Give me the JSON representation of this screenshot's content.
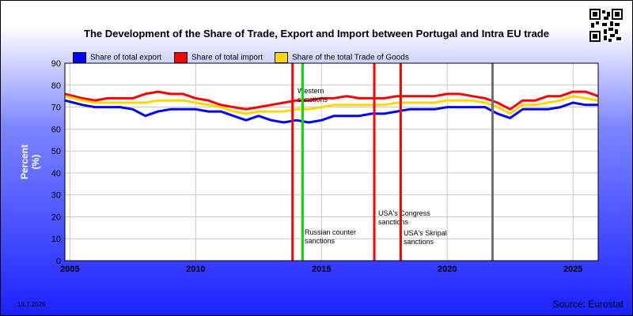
{
  "title": "The Development of the Share of Trade, Export and Import between Portugal and Intra EU trade",
  "date": "18.7.2026",
  "source": "Source: Eurostat",
  "colors": {
    "export": "#0000ff",
    "import": "#ff0000",
    "trade": "#ffd700",
    "plot_bg": "#ffffff"
  },
  "chart_data": {
    "type": "line",
    "title": "The Development of the Share of Trade, Export and Import between Portugal and Intra EU trade",
    "ylabel": "Percent (%)",
    "xlabel": "",
    "ylim": [
      0,
      90
    ],
    "xlim": [
      2004.8,
      2026.0
    ],
    "yticks": [
      "0",
      "10",
      "20",
      "30",
      "40",
      "50",
      "60",
      "70",
      "80",
      "90"
    ],
    "xticks": [
      "2005",
      "2010",
      "2015",
      "2020",
      "2025"
    ],
    "grid": true,
    "legend_position": "top",
    "series": [
      {
        "name": "Share of total export",
        "x": [
          2004.8,
          2005.5,
          2006,
          2006.5,
          2007,
          2007.5,
          2008,
          2008.5,
          2009,
          2009.5,
          2010,
          2010.5,
          2011,
          2011.5,
          2012,
          2012.5,
          2013,
          2013.5,
          2014,
          2014.5,
          2015,
          2015.5,
          2016,
          2016.5,
          2017,
          2017.5,
          2018,
          2018.5,
          2019,
          2019.5,
          2020,
          2020.5,
          2021,
          2021.5,
          2022,
          2022.5,
          2023,
          2023.5,
          2024,
          2024.5,
          2025,
          2025.5,
          2026
        ],
        "values": [
          73,
          71,
          70,
          70,
          70,
          69,
          66,
          68,
          69,
          69,
          69,
          68,
          68,
          66,
          64,
          66,
          64,
          63,
          64,
          63,
          64,
          66,
          66,
          66,
          67,
          67,
          68,
          69,
          69,
          69,
          70,
          70,
          70,
          70,
          67,
          65,
          69,
          69,
          69,
          70,
          72,
          71,
          71
        ]
      },
      {
        "name": "Share of total import",
        "x": [
          2004.8,
          2005.5,
          2006,
          2006.5,
          2007,
          2007.5,
          2008,
          2008.5,
          2009,
          2009.5,
          2010,
          2010.5,
          2011,
          2011.5,
          2012,
          2012.5,
          2013,
          2013.5,
          2014,
          2014.5,
          2015,
          2015.5,
          2016,
          2016.5,
          2017,
          2017.5,
          2018,
          2018.5,
          2019,
          2019.5,
          2020,
          2020.5,
          2021,
          2021.5,
          2022,
          2022.5,
          2023,
          2023.5,
          2024,
          2024.5,
          2025,
          2025.5,
          2026
        ],
        "values": [
          76,
          74,
          73,
          74,
          74,
          74,
          76,
          77,
          76,
          76,
          74,
          73,
          71,
          70,
          69,
          70,
          71,
          72,
          73,
          73,
          74,
          74,
          75,
          74,
          74,
          74,
          75,
          75,
          75,
          75,
          76,
          76,
          75,
          74,
          72,
          69,
          73,
          73,
          75,
          75,
          77,
          77,
          75
        ]
      },
      {
        "name": "Share of the total Trade of Goods",
        "x": [
          2004.8,
          2005.5,
          2006,
          2006.5,
          2007,
          2007.5,
          2008,
          2008.5,
          2009,
          2009.5,
          2010,
          2010.5,
          2011,
          2011.5,
          2012,
          2012.5,
          2013,
          2013.5,
          2014,
          2014.5,
          2015,
          2015.5,
          2016,
          2016.5,
          2017,
          2017.5,
          2018,
          2018.5,
          2019,
          2019.5,
          2020,
          2020.5,
          2021,
          2021.5,
          2022,
          2022.5,
          2023,
          2023.5,
          2024,
          2024.5,
          2025,
          2025.5,
          2026
        ],
        "values": [
          75,
          73,
          72,
          72,
          72,
          72,
          72,
          73,
          73,
          73,
          72,
          71,
          70,
          68,
          67,
          68,
          68,
          68,
          69,
          69,
          70,
          71,
          71,
          71,
          71,
          71,
          72,
          72,
          72,
          72,
          73,
          73,
          73,
          72,
          70,
          67,
          71,
          71,
          72,
          73,
          75,
          74,
          73
        ]
      }
    ],
    "events": [
      {
        "x": 2013.85,
        "color": "#ff0000",
        "label": "Western sanctions"
      },
      {
        "x": 2014.25,
        "color": "#00e000",
        "label": "Russian counter sanctions"
      },
      {
        "x": 2017.1,
        "color": "#ff0000",
        "label": "USA's Congress sanctions"
      },
      {
        "x": 2018.15,
        "color": "#ff0000",
        "label": "USA's Skripal sanctions"
      },
      {
        "x": 2021.8,
        "color": "#707070",
        "label": ""
      }
    ]
  }
}
